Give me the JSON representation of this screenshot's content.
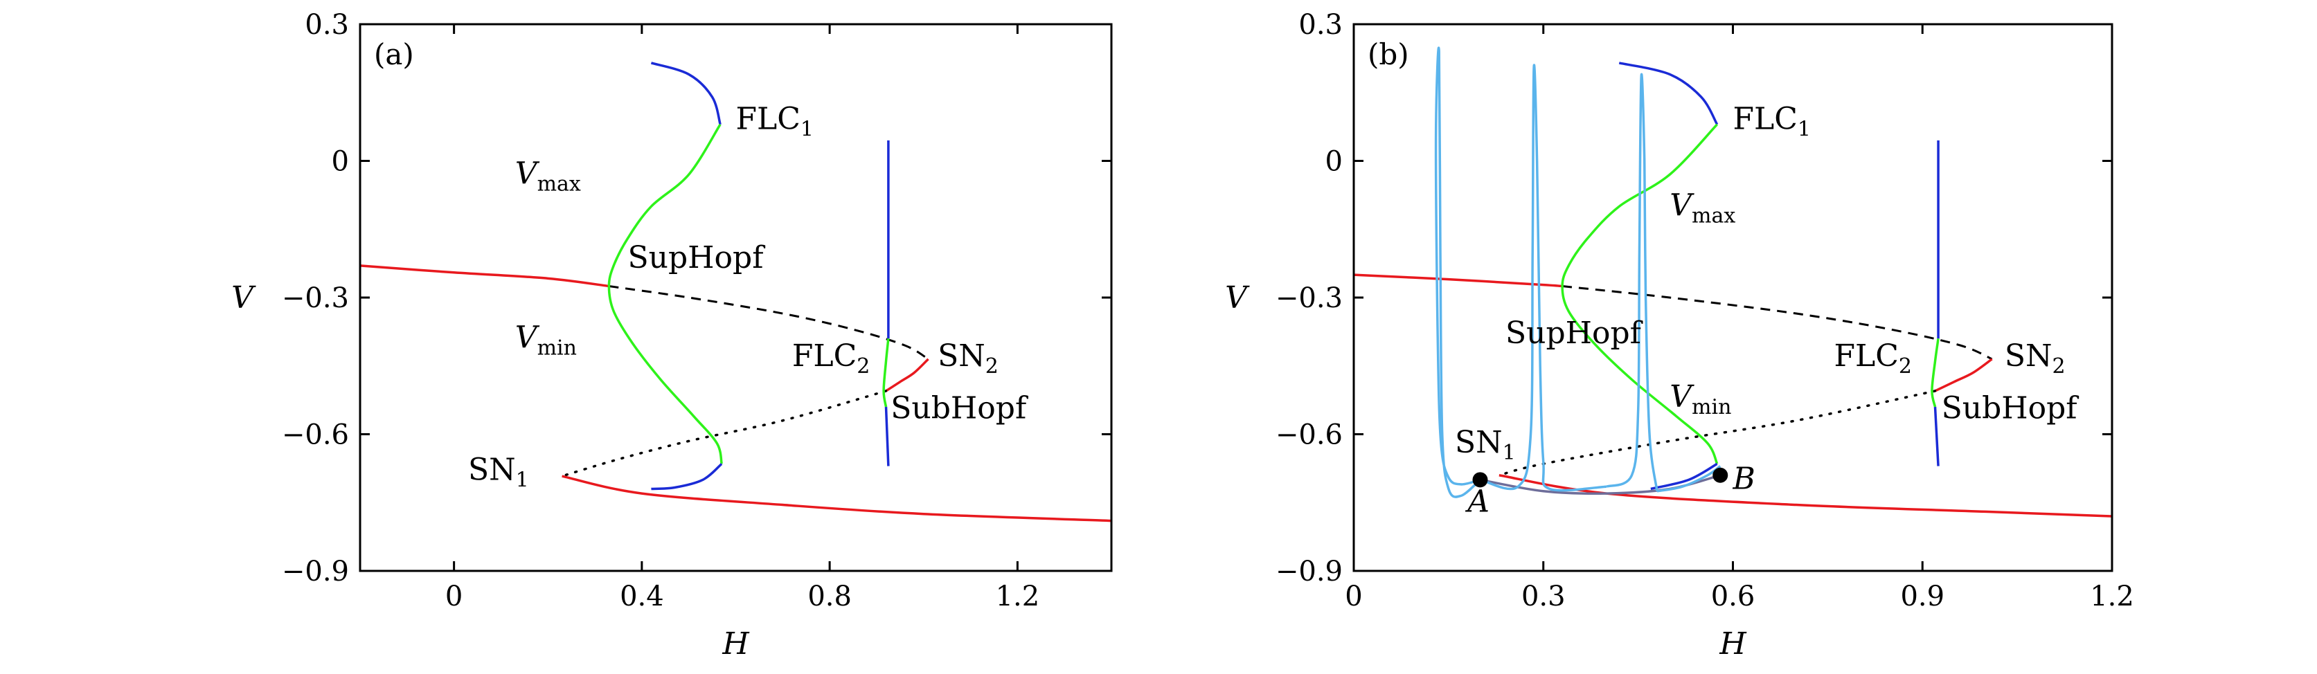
{
  "chart_data": [
    {
      "type": "line",
      "panel_label": "(a)",
      "xlabel": "H",
      "ylabel": "V",
      "xlim": [
        -0.2,
        1.4
      ],
      "ylim": [
        -0.9,
        0.3
      ],
      "xticks": [
        0,
        0.4,
        0.8,
        1.2
      ],
      "xtick_labels": [
        "0",
        "0.4",
        "0.8",
        "1.2"
      ],
      "yticks": [
        -0.9,
        -0.6,
        -0.3,
        0,
        0.3
      ],
      "ytick_labels": [
        "−0.9",
        "−0.6",
        "−0.3",
        "0",
        "0.3"
      ],
      "colors": {
        "stable_node": "#e8191e",
        "stable_cycle": "#1a2bd6",
        "unstable_cycle": "#2ef21a",
        "unstable_eq": "#000000"
      },
      "series": [
        {
          "style": "stable_node",
          "points": [
            [
              -0.2,
              -0.23
            ],
            [
              0,
              -0.245
            ],
            [
              0.2,
              -0.258
            ],
            [
              0.33,
              -0.275
            ]
          ]
        },
        {
          "style": "unstable_eq_dashed",
          "points": [
            [
              0.33,
              -0.275
            ],
            [
              0.5,
              -0.3
            ],
            [
              0.7,
              -0.335
            ],
            [
              0.85,
              -0.37
            ],
            [
              0.96,
              -0.405
            ],
            [
              1.01,
              -0.435
            ]
          ]
        },
        {
          "style": "stable_node",
          "points": [
            [
              1.01,
              -0.435
            ],
            [
              0.98,
              -0.465
            ],
            [
              0.95,
              -0.485
            ],
            [
              0.92,
              -0.505
            ]
          ]
        },
        {
          "style": "unstable_eq_dotted",
          "points": [
            [
              0.92,
              -0.505
            ],
            [
              0.7,
              -0.57
            ],
            [
              0.5,
              -0.615
            ],
            [
              0.35,
              -0.655
            ],
            [
              0.23,
              -0.692
            ]
          ]
        },
        {
          "style": "stable_node",
          "points": [
            [
              0.23,
              -0.692
            ],
            [
              0.4,
              -0.73
            ],
            [
              0.7,
              -0.755
            ],
            [
              1.0,
              -0.775
            ],
            [
              1.4,
              -0.79
            ]
          ]
        },
        {
          "style": "stable_cycle",
          "points": [
            [
              0.42,
              0.215
            ],
            [
              0.5,
              0.19
            ],
            [
              0.55,
              0.14
            ],
            [
              0.567,
              0.08
            ]
          ]
        },
        {
          "style": "unstable_cycle",
          "points": [
            [
              0.567,
              0.08
            ],
            [
              0.5,
              -0.03
            ],
            [
              0.42,
              -0.1
            ],
            [
              0.37,
              -0.17
            ],
            [
              0.34,
              -0.23
            ],
            [
              0.33,
              -0.275
            ],
            [
              0.34,
              -0.33
            ],
            [
              0.38,
              -0.4
            ],
            [
              0.44,
              -0.48
            ],
            [
              0.51,
              -0.56
            ],
            [
              0.56,
              -0.62
            ],
            [
              0.57,
              -0.665
            ]
          ]
        },
        {
          "style": "stable_cycle",
          "points": [
            [
              0.57,
              -0.665
            ],
            [
              0.53,
              -0.7
            ],
            [
              0.47,
              -0.717
            ],
            [
              0.42,
              -0.72
            ]
          ]
        },
        {
          "style": "stable_cycle",
          "points": [
            [
              0.925,
              0.045
            ],
            [
              0.925,
              -0.39
            ]
          ]
        },
        {
          "style": "unstable_cycle",
          "points": [
            [
              0.925,
              -0.39
            ],
            [
              0.92,
              -0.44
            ],
            [
              0.915,
              -0.505
            ],
            [
              0.92,
              -0.54
            ]
          ]
        },
        {
          "style": "stable_cycle",
          "points": [
            [
              0.92,
              -0.54
            ],
            [
              0.925,
              -0.67
            ]
          ]
        }
      ],
      "annotations": [
        {
          "text": "FLC",
          "sub": "1",
          "x": 0.6,
          "y": 0.07
        },
        {
          "text": "V",
          "sub": "max",
          "x": 0.13,
          "y": -0.05
        },
        {
          "text": "SupHopf",
          "x": 0.37,
          "y": -0.235
        },
        {
          "text": "V",
          "sub": "min",
          "x": 0.13,
          "y": -0.41
        },
        {
          "text": "FLC",
          "sub": "2",
          "x": 0.72,
          "y": -0.45
        },
        {
          "text": "SN",
          "sub": "2",
          "x": 1.03,
          "y": -0.45
        },
        {
          "text": "SubHopf",
          "x": 0.93,
          "y": -0.565
        },
        {
          "text": "SN",
          "sub": "1",
          "x": 0.03,
          "y": -0.7
        }
      ]
    },
    {
      "type": "line",
      "panel_label": "(b)",
      "xlabel": "H",
      "ylabel": "V",
      "xlim": [
        0,
        1.2
      ],
      "ylim": [
        -0.9,
        0.3
      ],
      "xticks": [
        0,
        0.3,
        0.6,
        0.9,
        1.2
      ],
      "xtick_labels": [
        "0",
        "0.3",
        "0.6",
        "0.9",
        "1.2"
      ],
      "yticks": [
        -0.9,
        -0.6,
        -0.3,
        0,
        0.3
      ],
      "ytick_labels": [
        "−0.9",
        "−0.6",
        "−0.3",
        "0",
        "0.3"
      ],
      "colors": {
        "stable_node": "#e8191e",
        "stable_cycle": "#1a2bd6",
        "unstable_cycle": "#2ef21a",
        "unstable_eq": "#000000",
        "trajectory": "#5ab4ec",
        "slow_manifold": "#6e6e9a",
        "point": "#000000"
      },
      "series": [
        {
          "style": "stable_node",
          "points": [
            [
              0,
              -0.25
            ],
            [
              0.15,
              -0.26
            ],
            [
              0.3,
              -0.272
            ],
            [
              0.33,
              -0.275
            ]
          ]
        },
        {
          "style": "unstable_eq_dashed",
          "points": [
            [
              0.33,
              -0.275
            ],
            [
              0.5,
              -0.3
            ],
            [
              0.7,
              -0.335
            ],
            [
              0.85,
              -0.37
            ],
            [
              0.96,
              -0.405
            ],
            [
              1.01,
              -0.435
            ]
          ]
        },
        {
          "style": "stable_node",
          "points": [
            [
              1.01,
              -0.435
            ],
            [
              0.98,
              -0.465
            ],
            [
              0.95,
              -0.485
            ],
            [
              0.92,
              -0.505
            ]
          ]
        },
        {
          "style": "unstable_eq_dotted",
          "points": [
            [
              0.92,
              -0.505
            ],
            [
              0.7,
              -0.57
            ],
            [
              0.5,
              -0.615
            ],
            [
              0.3,
              -0.665
            ],
            [
              0.23,
              -0.69
            ]
          ]
        },
        {
          "style": "stable_node",
          "points": [
            [
              0.23,
              -0.69
            ],
            [
              0.4,
              -0.73
            ],
            [
              0.7,
              -0.755
            ],
            [
              1.0,
              -0.77
            ],
            [
              1.2,
              -0.78
            ]
          ]
        },
        {
          "style": "stable_cycle",
          "points": [
            [
              0.42,
              0.215
            ],
            [
              0.5,
              0.19
            ],
            [
              0.55,
              0.14
            ],
            [
              0.575,
              0.08
            ]
          ]
        },
        {
          "style": "unstable_cycle",
          "points": [
            [
              0.575,
              0.08
            ],
            [
              0.5,
              -0.03
            ],
            [
              0.42,
              -0.1
            ],
            [
              0.37,
              -0.17
            ],
            [
              0.34,
              -0.23
            ],
            [
              0.33,
              -0.275
            ],
            [
              0.34,
              -0.33
            ],
            [
              0.38,
              -0.4
            ],
            [
              0.44,
              -0.48
            ],
            [
              0.51,
              -0.56
            ],
            [
              0.56,
              -0.62
            ],
            [
              0.575,
              -0.665
            ]
          ]
        },
        {
          "style": "stable_cycle",
          "points": [
            [
              0.575,
              -0.665
            ],
            [
              0.53,
              -0.7
            ],
            [
              0.47,
              -0.72
            ]
          ]
        },
        {
          "style": "stable_cycle",
          "points": [
            [
              0.925,
              0.045
            ],
            [
              0.925,
              -0.39
            ]
          ]
        },
        {
          "style": "unstable_cycle",
          "points": [
            [
              0.925,
              -0.39
            ],
            [
              0.92,
              -0.44
            ],
            [
              0.915,
              -0.505
            ],
            [
              0.92,
              -0.54
            ]
          ]
        },
        {
          "style": "stable_cycle",
          "points": [
            [
              0.92,
              -0.54
            ],
            [
              0.925,
              -0.67
            ]
          ]
        },
        {
          "style": "slow_manifold",
          "points": [
            [
              0.2,
              -0.7
            ],
            [
              0.3,
              -0.725
            ],
            [
              0.4,
              -0.73
            ],
            [
              0.5,
              -0.72
            ],
            [
              0.58,
              -0.69
            ]
          ]
        },
        {
          "style": "trajectory",
          "points": [
            [
              0.2,
              -0.7
            ],
            [
              0.17,
              -0.735
            ],
            [
              0.15,
              -0.72
            ],
            [
              0.14,
              -0.6
            ],
            [
              0.137,
              -0.2
            ],
            [
              0.135,
              0.24
            ],
            [
              0.13,
              0.05
            ],
            [
              0.133,
              -0.4
            ],
            [
              0.138,
              -0.62
            ],
            [
              0.15,
              -0.695
            ],
            [
              0.17,
              -0.71
            ],
            [
              0.2,
              -0.7
            ]
          ]
        },
        {
          "style": "trajectory",
          "points": [
            [
              0.2,
              -0.7
            ],
            [
              0.26,
              -0.715
            ],
            [
              0.28,
              -0.6
            ],
            [
              0.283,
              -0.2
            ],
            [
              0.285,
              0.205
            ],
            [
              0.29,
              0.0
            ],
            [
              0.295,
              -0.45
            ],
            [
              0.3,
              -0.66
            ],
            [
              0.31,
              -0.72
            ],
            [
              0.4,
              -0.715
            ]
          ]
        },
        {
          "style": "trajectory",
          "points": [
            [
              0.4,
              -0.715
            ],
            [
              0.44,
              -0.69
            ],
            [
              0.45,
              -0.55
            ],
            [
              0.452,
              -0.2
            ],
            [
              0.455,
              0.185
            ],
            [
              0.46,
              0.0
            ],
            [
              0.462,
              -0.3
            ],
            [
              0.468,
              -0.6
            ],
            [
              0.48,
              -0.725
            ]
          ]
        },
        {
          "style": "trajectory",
          "points": [
            [
              0.48,
              -0.725
            ],
            [
              0.52,
              -0.715
            ],
            [
              0.56,
              -0.69
            ],
            [
              0.58,
              -0.67
            ]
          ]
        }
      ],
      "points": [
        {
          "label": "A",
          "x": 0.2,
          "y": -0.7
        },
        {
          "label": "B",
          "x": 0.58,
          "y": -0.69
        }
      ],
      "annotations": [
        {
          "text": "FLC",
          "sub": "1",
          "x": 0.6,
          "y": 0.07
        },
        {
          "text": "V",
          "sub": "max",
          "x": 0.5,
          "y": -0.12
        },
        {
          "text": "SupHopf",
          "x": 0.24,
          "y": -0.4
        },
        {
          "text": "V",
          "sub": "min",
          "x": 0.5,
          "y": -0.54
        },
        {
          "text": "FLC",
          "sub": "2",
          "x": 0.76,
          "y": -0.45
        },
        {
          "text": "SN",
          "sub": "2",
          "x": 1.03,
          "y": -0.45
        },
        {
          "text": "SubHopf",
          "x": 0.93,
          "y": -0.565
        },
        {
          "text": "SN",
          "sub": "1",
          "x": 0.16,
          "y": -0.64
        },
        {
          "text": "A",
          "x": 0.18,
          "y": -0.77
        },
        {
          "text": "B",
          "x": 0.6,
          "y": -0.72
        }
      ]
    }
  ]
}
